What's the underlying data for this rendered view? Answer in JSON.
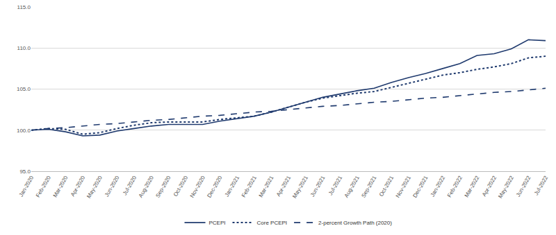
{
  "chart_data": {
    "type": "line",
    "categories": [
      "Jan-2020",
      "Feb-2020",
      "Mar-2020",
      "Apr-2020",
      "May-2020",
      "Jun-2020",
      "Jul-2020",
      "Aug-2020",
      "Sep-2020",
      "Oct-2020",
      "Nov-2020",
      "Dec-2020",
      "Jan-2021",
      "Feb-2021",
      "Mar-2021",
      "Apr-2021",
      "May-2021",
      "Jun-2021",
      "Jul-2021",
      "Aug-2021",
      "Sep-2021",
      "Oct-2021",
      "Nov-2021",
      "Dec-2021",
      "Jan-2022",
      "Feb-2022",
      "Mar-2022",
      "Apr-2022",
      "May-2022",
      "Jun-2022",
      "Jul-2022"
    ],
    "series": [
      {
        "name": "PCEPI",
        "color": "#1f3a6e",
        "line_style": "solid",
        "values": [
          100.0,
          100.1,
          99.8,
          99.3,
          99.4,
          99.9,
          100.2,
          100.5,
          100.7,
          100.7,
          100.7,
          101.1,
          101.4,
          101.7,
          102.2,
          102.8,
          103.4,
          104.0,
          104.4,
          104.8,
          105.1,
          105.8,
          106.4,
          106.9,
          107.5,
          108.1,
          109.1,
          109.3,
          109.9,
          111.0,
          110.9
        ]
      },
      {
        "name": "Core PCEPI",
        "color": "#1f3a6e",
        "line_style": "dot",
        "values": [
          100.0,
          100.2,
          100.1,
          99.5,
          99.7,
          100.2,
          100.6,
          100.9,
          101.0,
          101.0,
          101.0,
          101.3,
          101.5,
          101.7,
          102.2,
          102.8,
          103.4,
          103.9,
          104.2,
          104.5,
          104.7,
          105.2,
          105.7,
          106.2,
          106.7,
          107.0,
          107.4,
          107.7,
          108.1,
          108.8,
          109.0
        ]
      },
      {
        "name": "2-percent Growth Path (2020)",
        "color": "#1f3a6e",
        "line_style": "dash",
        "values": [
          100.0,
          100.2,
          100.3,
          100.5,
          100.7,
          100.8,
          101.0,
          101.2,
          101.3,
          101.5,
          101.7,
          101.8,
          102.0,
          102.2,
          102.3,
          102.5,
          102.7,
          102.9,
          103.0,
          103.2,
          103.4,
          103.5,
          103.7,
          103.9,
          104.0,
          104.2,
          104.4,
          104.6,
          104.7,
          104.9,
          105.1
        ]
      }
    ],
    "ylim": [
      95,
      115
    ],
    "yticks": [
      {
        "value": 95,
        "label": "95.0"
      },
      {
        "value": 100,
        "label": "100.0"
      },
      {
        "value": 105,
        "label": "105.0"
      },
      {
        "value": 110,
        "label": "110.0"
      },
      {
        "value": 115,
        "label": "115.0"
      }
    ],
    "grid": true,
    "legend": "bottom"
  }
}
